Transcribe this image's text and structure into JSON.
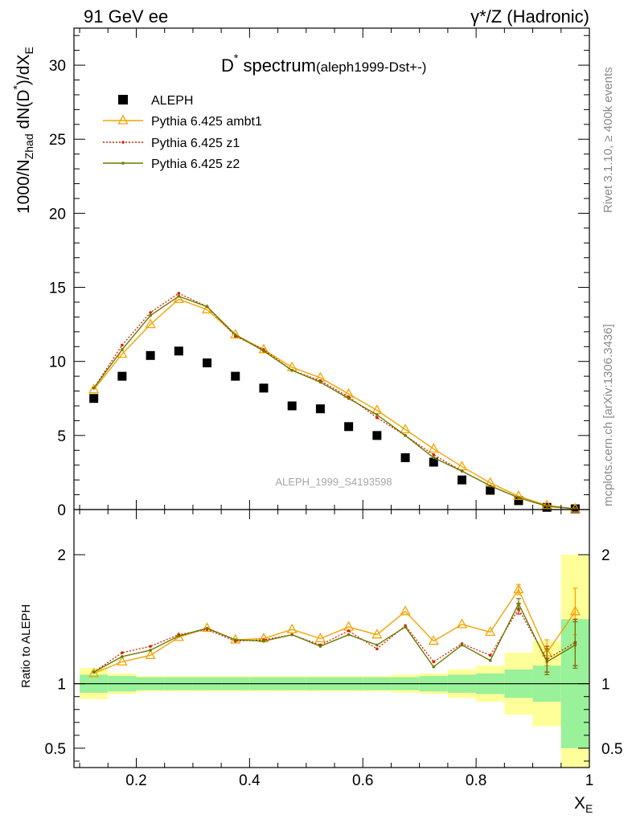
{
  "header": {
    "left": "91 GeV ee",
    "right": "γ*/Z (Hadronic)"
  },
  "side_text": {
    "rivet": "Rivet 3.1.10, ≥ 400k events",
    "mcplots": "mcplots.cern.ch [arXiv:1306.3436]"
  },
  "plot_title": {
    "main": "D",
    "sup": "*",
    "rest": " spectrum",
    "sub": "(aleph1999-Dst+-)"
  },
  "watermark": "ALEPH_1999_S4193598",
  "colors": {
    "data": "#000000",
    "ambt1": "#f5a300",
    "z1": "#d62000",
    "z2": "#6b7a00",
    "band_inner": "#99f199",
    "band_outer": "#ffff99"
  },
  "chart_data": [
    {
      "type": "scatter",
      "x": [
        0.125,
        0.175,
        0.225,
        0.275,
        0.325,
        0.375,
        0.425,
        0.475,
        0.525,
        0.575,
        0.625,
        0.675,
        0.725,
        0.775,
        0.825,
        0.875,
        0.925,
        0.975
      ],
      "xlabel": "X_E",
      "ylabel": "1000/N_Zhad dN(D*)/dX_E",
      "xlim": [
        0.09,
        1.0
      ],
      "ylim": [
        0,
        32.5
      ],
      "yticks": [
        0,
        5,
        10,
        15,
        20,
        25,
        30
      ],
      "ytick_labels": [
        "0",
        "5",
        "10",
        "15",
        "20",
        "25",
        "30"
      ],
      "series": [
        {
          "name": "ALEPH",
          "style": "square",
          "values": [
            7.5,
            9.0,
            10.4,
            10.7,
            9.9,
            9.0,
            8.2,
            7.0,
            6.8,
            5.6,
            5.0,
            3.5,
            3.2,
            2.0,
            1.3,
            0.6,
            0.15,
            0.05
          ]
        },
        {
          "name": "Pythia 6.425 ambt1",
          "style": "triangle",
          "values": [
            8.1,
            10.5,
            12.5,
            14.2,
            13.5,
            11.8,
            10.8,
            9.6,
            8.9,
            7.8,
            6.7,
            5.4,
            4.1,
            2.9,
            1.8,
            0.9,
            0.28,
            0.05
          ]
        },
        {
          "name": "Pythia 6.425 z1",
          "style": "dotted",
          "values": [
            8.2,
            11.1,
            13.3,
            14.6,
            13.7,
            11.7,
            10.8,
            9.4,
            8.7,
            7.6,
            6.2,
            5.0,
            3.7,
            2.6,
            1.6,
            0.8,
            0.25,
            0.05
          ]
        },
        {
          "name": "Pythia 6.425 z2",
          "style": "solid-dot",
          "values": [
            8.2,
            10.8,
            13.1,
            14.4,
            13.7,
            11.8,
            10.7,
            9.4,
            8.6,
            7.5,
            6.4,
            5.0,
            3.5,
            2.6,
            1.6,
            0.8,
            0.22,
            0.05
          ]
        }
      ]
    },
    {
      "type": "line",
      "x": [
        0.125,
        0.175,
        0.225,
        0.275,
        0.325,
        0.375,
        0.425,
        0.475,
        0.525,
        0.575,
        0.625,
        0.675,
        0.725,
        0.775,
        0.825,
        0.875,
        0.925,
        0.975
      ],
      "xlabel": "X_E",
      "ylabel": "Ratio to ALEPH",
      "xlim": [
        0.09,
        1.0
      ],
      "ylim": [
        0.35,
        2.35
      ],
      "xticks": [
        0.2,
        0.4,
        0.6,
        0.8,
        1
      ],
      "xtick_labels": [
        "0.2",
        "0.4",
        "0.6",
        "0.8",
        "1"
      ],
      "yticks": [
        0.5,
        1,
        2
      ],
      "ytick_labels": [
        "0.5",
        "1",
        "2"
      ],
      "bands": {
        "inner_half": [
          0.07,
          0.06,
          0.05,
          0.05,
          0.05,
          0.05,
          0.05,
          0.05,
          0.05,
          0.05,
          0.05,
          0.05,
          0.06,
          0.07,
          0.08,
          0.11,
          0.14,
          0.5
        ],
        "outer_half": [
          0.12,
          0.08,
          0.06,
          0.06,
          0.06,
          0.06,
          0.06,
          0.06,
          0.06,
          0.06,
          0.06,
          0.07,
          0.08,
          0.11,
          0.14,
          0.24,
          0.33,
          1.0
        ]
      },
      "series": [
        {
          "name": "Pythia 6.425 ambt1",
          "style": "triangle",
          "values": [
            1.08,
            1.17,
            1.22,
            1.36,
            1.43,
            1.34,
            1.35,
            1.42,
            1.35,
            1.44,
            1.38,
            1.56,
            1.33,
            1.46,
            1.4,
            1.73,
            1.24,
            1.56
          ],
          "errors": [
            0,
            0,
            0,
            0,
            0,
            0,
            0,
            0,
            0,
            0,
            0,
            0,
            0,
            0,
            0,
            0.04,
            0.1,
            0.18
          ]
        },
        {
          "name": "Pythia 6.425 z1",
          "style": "dotted",
          "values": [
            1.09,
            1.24,
            1.29,
            1.38,
            1.42,
            1.33,
            1.34,
            1.38,
            1.3,
            1.41,
            1.27,
            1.45,
            1.17,
            1.31,
            1.22,
            1.58,
            1.19,
            1.32
          ],
          "errors": [
            0,
            0,
            0,
            0,
            0,
            0,
            0,
            0,
            0,
            0,
            0,
            0,
            0,
            0,
            0,
            0.04,
            0.1,
            0.18
          ]
        },
        {
          "name": "Pythia 6.425 z2",
          "style": "solid-dot",
          "values": [
            1.09,
            1.21,
            1.26,
            1.37,
            1.43,
            1.34,
            1.33,
            1.38,
            1.29,
            1.38,
            1.3,
            1.44,
            1.13,
            1.3,
            1.18,
            1.62,
            1.17,
            1.3
          ],
          "errors": [
            0,
            0,
            0,
            0,
            0,
            0,
            0,
            0,
            0,
            0,
            0,
            0,
            0,
            0,
            0,
            0.04,
            0.1,
            0.18
          ]
        }
      ]
    }
  ]
}
